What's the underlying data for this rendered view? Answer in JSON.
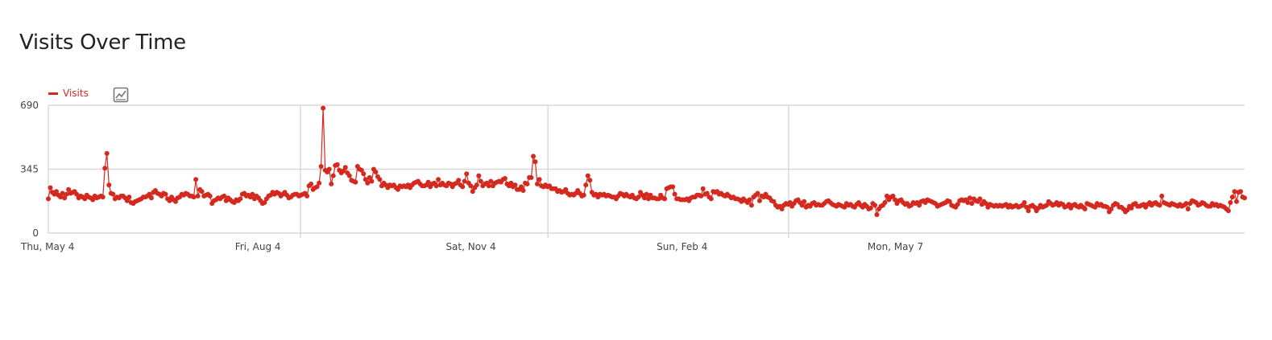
{
  "page": {
    "title": "Visits Over Time",
    "evolution_icon": "evolution-graph-icon"
  },
  "colors": {
    "series": "#d4291f",
    "grid": "#d9d9d9",
    "axis_text": "#444444",
    "title": "#222222"
  },
  "chart_data": {
    "type": "line",
    "title": "Visits Over Time",
    "xlabel": "",
    "ylabel": "",
    "y_ticks": [
      "0",
      "345",
      "690"
    ],
    "x_tick_labels": [
      "Thu, May 4",
      "Fri, Aug 4",
      "Sat, Nov 4",
      "Sun, Feb 4",
      "Mon, May 7"
    ],
    "ylim": [
      0,
      690
    ],
    "x_range": [
      "2017-05-04",
      "2018-10-08"
    ],
    "grid": true,
    "legend": "top-left",
    "series": [
      {
        "name": "Visits",
        "x_start": "2017-05-04",
        "x_step": "1 day",
        "values": [
          185,
          245,
          220,
          210,
          225,
          205,
          195,
          215,
          190,
          210,
          235,
          215,
          220,
          225,
          210,
          190,
          200,
          195,
          185,
          205,
          195,
          190,
          180,
          200,
          190,
          195,
          200,
          195,
          350,
          430,
          260,
          215,
          210,
          185,
          195,
          190,
          200,
          200,
          190,
          175,
          195,
          165,
          160,
          170,
          175,
          180,
          185,
          195,
          195,
          200,
          210,
          190,
          220,
          230,
          215,
          210,
          200,
          215,
          210,
          185,
          175,
          195,
          180,
          170,
          190,
          195,
          210,
          205,
          215,
          210,
          200,
          200,
          195,
          290,
          200,
          235,
          225,
          200,
          205,
          210,
          200,
          160,
          175,
          180,
          190,
          185,
          195,
          200,
          175,
          190,
          180,
          170,
          165,
          180,
          175,
          185,
          210,
          215,
          200,
          205,
          195,
          210,
          185,
          200,
          190,
          175,
          160,
          165,
          185,
          200,
          205,
          220,
          210,
          220,
          215,
          200,
          210,
          220,
          205,
          190,
          195,
          205,
          210,
          210,
          200,
          205,
          210,
          215,
          200,
          255,
          265,
          235,
          245,
          250,
          270,
          360,
          675,
          340,
          330,
          345,
          265,
          310,
          365,
          370,
          340,
          325,
          335,
          355,
          325,
          310,
          285,
          280,
          275,
          360,
          345,
          340,
          320,
          290,
          270,
          300,
          280,
          345,
          330,
          305,
          290,
          255,
          270,
          260,
          245,
          260,
          255,
          260,
          245,
          235,
          255,
          250,
          255,
          250,
          260,
          245,
          260,
          270,
          275,
          280,
          265,
          255,
          255,
          260,
          275,
          250,
          265,
          270,
          255,
          290,
          260,
          270,
          260,
          255,
          270,
          265,
          250,
          265,
          270,
          285,
          260,
          250,
          280,
          320,
          270,
          255,
          225,
          245,
          260,
          310,
          280,
          255,
          265,
          270,
          255,
          280,
          255,
          270,
          275,
          280,
          275,
          290,
          295,
          265,
          255,
          270,
          250,
          260,
          235,
          235,
          250,
          230,
          270,
          265,
          300,
          300,
          415,
          385,
          265,
          290,
          255,
          250,
          260,
          250,
          255,
          240,
          240,
          240,
          225,
          230,
          220,
          225,
          235,
          215,
          205,
          210,
          205,
          215,
          230,
          215,
          200,
          205,
          260,
          310,
          285,
          220,
          205,
          210,
          195,
          210,
          205,
          210,
          200,
          205,
          200,
          195,
          195,
          185,
          200,
          215,
          210,
          200,
          210,
          200,
          195,
          205,
          190,
          185,
          195,
          220,
          205,
          190,
          210,
          185,
          205,
          190,
          190,
          185,
          185,
          205,
          190,
          185,
          240,
          245,
          250,
          250,
          210,
          185,
          185,
          180,
          180,
          180,
          185,
          175,
          190,
          195,
          195,
          205,
          205,
          200,
          240,
          210,
          215,
          195,
          185,
          225,
          220,
          225,
          210,
          215,
          205,
          200,
          210,
          200,
          190,
          195,
          185,
          185,
          180,
          170,
          185,
          175,
          165,
          180,
          150,
          195,
          205,
          215,
          175,
          200,
          195,
          210,
          195,
          190,
          175,
          170,
          150,
          140,
          145,
          130,
          150,
          160,
          155,
          165,
          145,
          160,
          175,
          180,
          165,
          150,
          170,
          140,
          150,
          145,
          160,
          165,
          150,
          155,
          150,
          150,
          160,
          170,
          175,
          165,
          155,
          150,
          145,
          155,
          150,
          145,
          140,
          160,
          150,
          155,
          145,
          140,
          155,
          165,
          150,
          140,
          155,
          145,
          130,
          135,
          160,
          150,
          100,
          130,
          145,
          150,
          165,
          200,
          180,
          195,
          200,
          180,
          160,
          175,
          180,
          165,
          155,
          160,
          145,
          150,
          165,
          160,
          165,
          150,
          170,
          175,
          165,
          180,
          175,
          170,
          165,
          160,
          145,
          150,
          155,
          160,
          165,
          175,
          170,
          150,
          145,
          140,
          155,
          175,
          180,
          175,
          180,
          165,
          190,
          160,
          185,
          175,
          170,
          185,
          155,
          170,
          160,
          140,
          155,
          150,
          145,
          150,
          145,
          150,
          145,
          150,
          155,
          140,
          150,
          140,
          145,
          150,
          140,
          145,
          150,
          165,
          140,
          120,
          145,
          150,
          140,
          120,
          135,
          150,
          140,
          145,
          150,
          170,
          160,
          150,
          155,
          165,
          150,
          160,
          155,
          140,
          145,
          155,
          135,
          150,
          155,
          145,
          140,
          150,
          140,
          130,
          160,
          155,
          150,
          145,
          140,
          160,
          150,
          155,
          145,
          145,
          140,
          115,
          130,
          150,
          160,
          155,
          140,
          140,
          130,
          115,
          125,
          145,
          135,
          155,
          160,
          145,
          145,
          150,
          155,
          140,
          155,
          165,
          150,
          160,
          165,
          155,
          150,
          200,
          165,
          160,
          155,
          150,
          160,
          155,
          150,
          145,
          155,
          145,
          150,
          160,
          130,
          160,
          175,
          170,
          165,
          150,
          155,
          165,
          160,
          150,
          145,
          145,
          160,
          150,
          155,
          145,
          150,
          145,
          140,
          130,
          120,
          165,
          195,
          225,
          170,
          220,
          225,
          195,
          190
        ]
      }
    ]
  }
}
